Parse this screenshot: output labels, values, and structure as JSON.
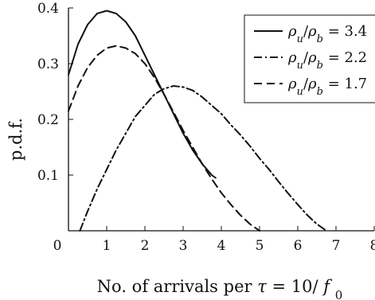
{
  "chart_data": {
    "type": "line",
    "title": "",
    "xlabel": "No. of arrivals per τ = 10/f₀",
    "ylabel": "p.d.f.",
    "xlim": [
      0,
      8
    ],
    "ylim": [
      0,
      0.4
    ],
    "x_ticks": [
      "0",
      "1",
      "2",
      "3",
      "4",
      "5",
      "6",
      "7",
      "8"
    ],
    "y_ticks": [
      "0.1",
      "0.2",
      "0.3",
      "0.4"
    ],
    "grid": false,
    "legend_position": "top-right",
    "series": [
      {
        "name": "ρu/ρb = 3.4",
        "style": "solid",
        "color": "#111111",
        "x": [
          0.0,
          0.25,
          0.5,
          0.75,
          1.0,
          1.25,
          1.5,
          1.75,
          2.0,
          2.25,
          2.5,
          2.75,
          3.0,
          3.25,
          3.5,
          3.75,
          3.85
        ],
        "y": [
          0.28,
          0.335,
          0.37,
          0.39,
          0.395,
          0.39,
          0.375,
          0.35,
          0.315,
          0.28,
          0.245,
          0.21,
          0.175,
          0.145,
          0.12,
          0.1,
          0.095
        ]
      },
      {
        "name": "ρu/ρb = 2.2",
        "style": "dashdot",
        "color": "#111111",
        "x": [
          0.3,
          0.5,
          0.75,
          1.0,
          1.25,
          1.5,
          1.75,
          2.0,
          2.25,
          2.5,
          2.75,
          3.0,
          3.25,
          3.5,
          3.75,
          4.0,
          4.25,
          4.5,
          4.75,
          5.0,
          5.25,
          5.5,
          5.75,
          6.0,
          6.25,
          6.5,
          6.75
        ],
        "y": [
          0.0,
          0.035,
          0.075,
          0.11,
          0.145,
          0.175,
          0.205,
          0.225,
          0.245,
          0.255,
          0.26,
          0.258,
          0.252,
          0.24,
          0.225,
          0.21,
          0.19,
          0.172,
          0.152,
          0.13,
          0.11,
          0.088,
          0.067,
          0.047,
          0.028,
          0.012,
          0.0
        ]
      },
      {
        "name": "ρu/ρb = 1.7",
        "style": "dashed",
        "color": "#111111",
        "x": [
          0.0,
          0.25,
          0.5,
          0.75,
          1.0,
          1.25,
          1.5,
          1.75,
          2.0,
          2.25,
          2.5,
          2.75,
          3.0,
          3.25,
          3.5,
          3.75,
          4.0,
          4.25,
          4.5,
          4.75,
          5.0
        ],
        "y": [
          0.215,
          0.26,
          0.293,
          0.315,
          0.328,
          0.332,
          0.328,
          0.318,
          0.3,
          0.275,
          0.245,
          0.213,
          0.18,
          0.15,
          0.12,
          0.093,
          0.068,
          0.047,
          0.028,
          0.012,
          0.0
        ]
      }
    ]
  }
}
